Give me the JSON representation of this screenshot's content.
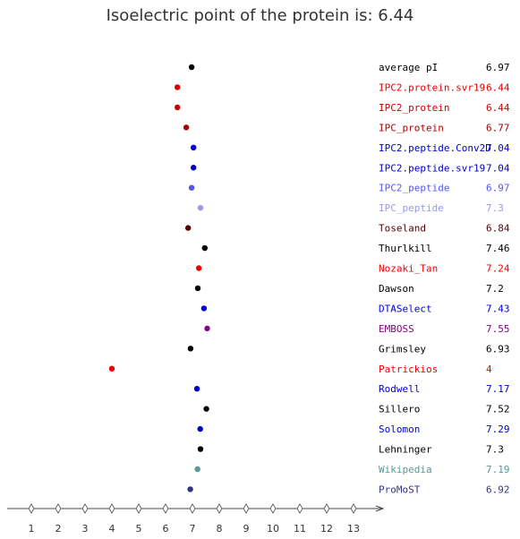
{
  "chart_data": {
    "type": "scatter",
    "title": "Isoelectric point of the protein is: 6.44",
    "x_ticks": [
      1,
      2,
      3,
      4,
      5,
      6,
      7,
      8,
      9,
      10,
      11,
      12,
      13
    ],
    "xlim": [
      0.1,
      13.9
    ],
    "grid": false,
    "legend": "none",
    "points": [
      {
        "name": "average pI",
        "value": "6.97",
        "x": 6.97,
        "color": "#000000"
      },
      {
        "name": "IPC2.protein.svr19",
        "value": "6.44",
        "x": 6.44,
        "color": "#dd0000"
      },
      {
        "name": "IPC2_protein",
        "value": "6.44",
        "x": 6.44,
        "color": "#cc0000"
      },
      {
        "name": "IPC_protein",
        "value": "6.77",
        "x": 6.77,
        "color": "#aa0000"
      },
      {
        "name": "IPC2.peptide.Conv2D",
        "value": "7.04",
        "x": 7.04,
        "color": "#0000dd"
      },
      {
        "name": "IPC2.peptide.svr19",
        "value": "7.04",
        "x": 7.04,
        "color": "#0000bb"
      },
      {
        "name": "IPC2_peptide",
        "value": "6.97",
        "x": 6.97,
        "color": "#5555ee"
      },
      {
        "name": "IPC_peptide",
        "value": "7.3",
        "x": 7.3,
        "color": "#9999ee"
      },
      {
        "name": "Toseland",
        "value": "6.84",
        "x": 6.84,
        "color": "#550000"
      },
      {
        "name": "Thurlkill",
        "value": "7.46",
        "x": 7.46,
        "color": "#000000"
      },
      {
        "name": "Nozaki_Tan",
        "value": "7.24",
        "x": 7.24,
        "color": "#ee0000"
      },
      {
        "name": "Dawson",
        "value": "7.2",
        "x": 7.2,
        "color": "#000000"
      },
      {
        "name": "DTASelect",
        "value": "7.43",
        "x": 7.43,
        "color": "#0000dd"
      },
      {
        "name": "EMBOSS",
        "value": "7.55",
        "x": 7.55,
        "color": "#880088"
      },
      {
        "name": "Grimsley",
        "value": "6.93",
        "x": 6.93,
        "color": "#000000"
      },
      {
        "name": "Patrickios",
        "value": "4",
        "x": 4.0,
        "color": "#ee0000"
      },
      {
        "name": "Rodwell",
        "value": "7.17",
        "x": 7.17,
        "color": "#0000cc"
      },
      {
        "name": "Sillero",
        "value": "7.52",
        "x": 7.52,
        "color": "#000000"
      },
      {
        "name": "Solomon",
        "value": "7.29",
        "x": 7.29,
        "color": "#0000cc"
      },
      {
        "name": "Lehninger",
        "value": "7.3",
        "x": 7.3,
        "color": "#000000"
      },
      {
        "name": "Wikipedia",
        "value": "7.19",
        "x": 7.19,
        "color": "#559999"
      },
      {
        "name": "ProMoST",
        "value": "6.92",
        "x": 6.92,
        "color": "#333388"
      }
    ]
  }
}
